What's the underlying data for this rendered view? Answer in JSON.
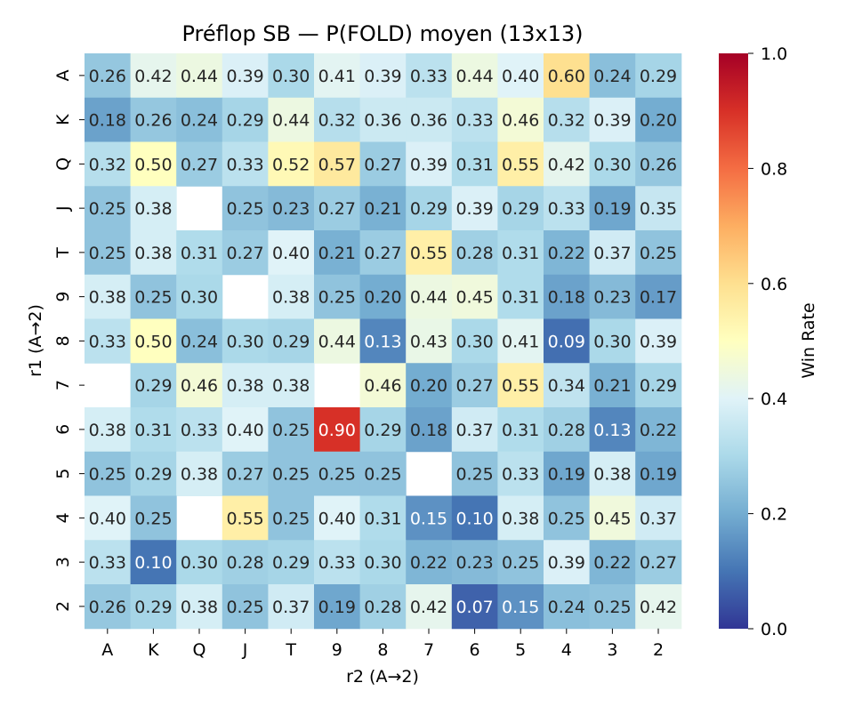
{
  "chart_data": {
    "type": "heatmap",
    "title": "Préflop SB — P(FOLD) moyen (13x13)",
    "xlabel": "r2 (A→2)",
    "ylabel": "r1 (A→2)",
    "x_categories": [
      "A",
      "K",
      "Q",
      "J",
      "T",
      "9",
      "8",
      "7",
      "6",
      "5",
      "4",
      "3",
      "2"
    ],
    "y_categories": [
      "A",
      "K",
      "Q",
      "J",
      "T",
      "9",
      "8",
      "7",
      "6",
      "5",
      "4",
      "3",
      "2"
    ],
    "values": [
      [
        0.26,
        0.42,
        0.44,
        0.39,
        0.3,
        0.41,
        0.39,
        0.33,
        0.44,
        0.4,
        0.6,
        0.24,
        0.29
      ],
      [
        0.18,
        0.26,
        0.24,
        0.29,
        0.44,
        0.32,
        0.36,
        0.36,
        0.33,
        0.46,
        0.32,
        0.39,
        0.2
      ],
      [
        0.32,
        0.5,
        0.27,
        0.33,
        0.52,
        0.57,
        0.27,
        0.39,
        0.31,
        0.55,
        0.42,
        0.3,
        0.26
      ],
      [
        0.25,
        0.38,
        null,
        0.25,
        0.23,
        0.27,
        0.21,
        0.29,
        0.39,
        0.29,
        0.33,
        0.19,
        0.35
      ],
      [
        0.25,
        0.38,
        0.31,
        0.27,
        0.4,
        0.21,
        0.27,
        0.55,
        0.28,
        0.31,
        0.22,
        0.37,
        0.25
      ],
      [
        0.38,
        0.25,
        0.3,
        null,
        0.38,
        0.25,
        0.2,
        0.44,
        0.45,
        0.31,
        0.18,
        0.23,
        0.17
      ],
      [
        0.33,
        0.5,
        0.24,
        0.3,
        0.29,
        0.44,
        0.13,
        0.43,
        0.3,
        0.41,
        0.09,
        0.3,
        0.39
      ],
      [
        null,
        0.29,
        0.46,
        0.38,
        0.38,
        null,
        0.46,
        0.2,
        0.27,
        0.55,
        0.34,
        0.21,
        0.29
      ],
      [
        0.38,
        0.31,
        0.33,
        0.4,
        0.25,
        0.9,
        0.29,
        0.18,
        0.37,
        0.31,
        0.28,
        0.13,
        0.22
      ],
      [
        0.25,
        0.29,
        0.38,
        0.27,
        0.25,
        0.25,
        0.25,
        null,
        0.25,
        0.33,
        0.19,
        0.38,
        0.19
      ],
      [
        0.4,
        0.25,
        null,
        0.55,
        0.25,
        0.4,
        0.31,
        0.15,
        0.1,
        0.38,
        0.25,
        0.45,
        0.37
      ],
      [
        0.33,
        0.1,
        0.3,
        0.28,
        0.29,
        0.33,
        0.3,
        0.22,
        0.23,
        0.25,
        0.39,
        0.22,
        0.27
      ],
      [
        0.26,
        0.29,
        0.38,
        0.25,
        0.37,
        0.19,
        0.28,
        0.42,
        0.07,
        0.15,
        0.24,
        0.25,
        0.42
      ]
    ],
    "colorbar": {
      "label": "Win Rate",
      "range": [
        0,
        1
      ],
      "ticks": [
        "0.0",
        "0.2",
        "0.4",
        "0.6",
        "0.8",
        "1.0"
      ],
      "colormap": "RdYlBu_r"
    }
  }
}
